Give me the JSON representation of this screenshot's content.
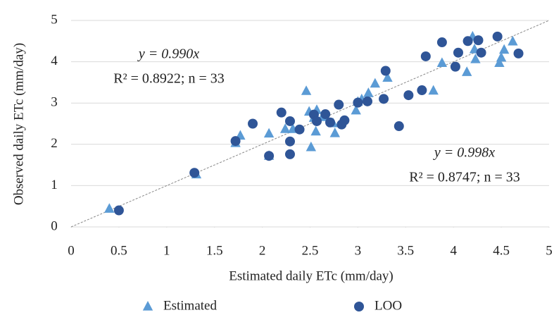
{
  "chart_data": {
    "type": "scatter",
    "x_label": "Estimated daily ETc (mm/day)",
    "y_label": "Observed daily ETc (mm/day)",
    "xlim": [
      0,
      5
    ],
    "ylim": [
      0,
      5
    ],
    "xticks": [
      0,
      0.5,
      1,
      1.5,
      2,
      2.5,
      3,
      3.5,
      4,
      4.5,
      5
    ],
    "yticks": [
      0,
      1,
      2,
      3,
      4,
      5
    ],
    "grid": true,
    "annotations": [
      "y = 0.990x",
      "R² = 0.8922; n = 33",
      "y = 0.998x",
      "R² = 0.8747; n = 33"
    ],
    "series": [
      {
        "name": "Estimated",
        "color": "#5b9bd5",
        "marker": "triangle",
        "x": [
          0.4,
          1.31,
          1.72,
          1.77,
          2.07,
          2.07,
          2.32,
          2.46,
          2.49,
          2.51,
          2.56,
          2.57,
          2.63,
          2.74,
          2.76,
          2.98,
          3.0,
          3.04,
          3.11,
          3.18,
          3.31,
          3.79,
          3.88,
          4.14,
          4.2,
          4.22,
          4.23,
          4.48,
          4.5,
          4.53,
          4.62,
          2.24,
          2.54
        ],
        "values": [
          0.44,
          1.27,
          2.03,
          2.21,
          2.26,
          1.72,
          2.37,
          3.29,
          2.79,
          1.93,
          2.31,
          2.83,
          2.66,
          2.51,
          2.27,
          2.82,
          3.03,
          3.09,
          3.24,
          3.47,
          3.61,
          3.3,
          3.97,
          3.75,
          4.61,
          4.3,
          4.06,
          3.97,
          4.1,
          4.29,
          4.49,
          2.37,
          2.64
        ]
      },
      {
        "name": "LOO",
        "color": "#2f5597",
        "marker": "circle",
        "x": [
          0.5,
          1.29,
          1.72,
          1.9,
          2.07,
          2.2,
          2.29,
          2.29,
          2.29,
          2.39,
          2.54,
          2.57,
          2.66,
          2.71,
          2.8,
          2.83,
          2.86,
          3.0,
          3.1,
          3.27,
          3.29,
          3.43,
          3.53,
          3.67,
          3.71,
          3.88,
          4.02,
          4.05,
          4.15,
          4.26,
          4.29,
          4.46,
          4.68
        ],
        "values": [
          0.4,
          1.31,
          2.08,
          2.5,
          1.72,
          2.77,
          2.56,
          1.76,
          2.07,
          2.36,
          2.72,
          2.56,
          2.73,
          2.53,
          2.96,
          2.48,
          2.58,
          3.01,
          3.04,
          3.1,
          3.78,
          2.44,
          3.19,
          3.31,
          4.13,
          4.47,
          3.88,
          4.22,
          4.5,
          4.52,
          4.22,
          4.61,
          4.2
        ]
      }
    ]
  }
}
